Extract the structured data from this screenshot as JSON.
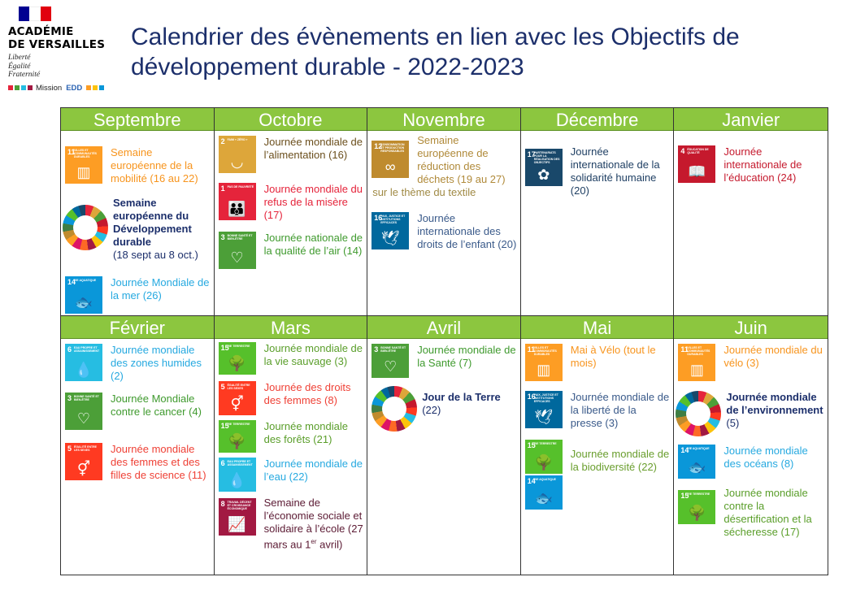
{
  "colors": {
    "month_header": "#8cc63f",
    "title": "#1c2f6b",
    "sdg": {
      "1": "#e5243b",
      "2": "#dda63a",
      "3": "#4c9f38",
      "4": "#c5192d",
      "5": "#ff3a21",
      "6": "#26bde2",
      "11": "#fd9d24",
      "12": "#bf8b2e",
      "14": "#0a97d9",
      "15": "#56c02b",
      "16": "#00689d",
      "17": "#19486a",
      "8": "#a21942"
    }
  },
  "header": {
    "logo": {
      "line1": "ACADÉMIE",
      "line2": "DE VERSAILLES",
      "motto": [
        "Liberté",
        "Égalité",
        "Fraternité"
      ],
      "mission_label": "Mission",
      "mission_acronym": "EDD"
    },
    "title_line1": "Calendrier des évènements en lien avec les Objectifs de",
    "title_line2": "développement durable - 2022-2023"
  },
  "months": {
    "sep": "Septembre",
    "oct": "Octobre",
    "nov": "Novembre",
    "dec": "Décembre",
    "jan": "Janvier",
    "feb": "Février",
    "mar": "Mars",
    "apr": "Avril",
    "may": "Mai",
    "jun": "Juin"
  },
  "icons": {
    "11": {
      "num": "11",
      "label": "Villes et communautés durables",
      "pic": "▥"
    },
    "14": {
      "num": "14",
      "label": "Vie aquatique",
      "pic": "🐟"
    },
    "2": {
      "num": "2",
      "label": "Faim « zéro »",
      "pic": "◡"
    },
    "1": {
      "num": "1",
      "label": "Pas de pauvreté",
      "pic": "👪"
    },
    "3": {
      "num": "3",
      "label": "Bonne santé et bien-être",
      "pic": "♡"
    },
    "12": {
      "num": "12",
      "label": "Consommation et production responsables",
      "pic": "∞"
    },
    "16": {
      "num": "16",
      "label": "Paix, justice et institutions efficaces",
      "pic": "🕊"
    },
    "17": {
      "num": "17",
      "label": "Partenariats pour la réalisation des objectifs",
      "pic": "✿"
    },
    "4": {
      "num": "4",
      "label": "Éducation de qualité",
      "pic": "📖"
    },
    "6": {
      "num": "6",
      "label": "Eau propre et assainissement",
      "pic": "💧"
    },
    "5": {
      "num": "5",
      "label": "Égalité entre les sexes",
      "pic": "⚥"
    },
    "15": {
      "num": "15",
      "label": "Vie terrestre",
      "pic": "🌳"
    },
    "8": {
      "num": "8",
      "label": "Travail décent et croissance économique",
      "pic": "📈"
    }
  },
  "events": {
    "sep_1": "Semaine européenne de la mobilité (16 au 22)",
    "sep_2_title": "Semaine européenne du Développement durable",
    "sep_2_date": "(18 sept au 8 oct.)",
    "sep_3": "Journée Mondiale de la mer (26)",
    "oct_1": "Journée mondiale de l’alimentation (16)",
    "oct_2": "Journée mondiale du refus de la misère (17)",
    "oct_3": "Journée nationale de la qualité de l’air (14)",
    "nov_1": "Semaine européenne de réduction des déchets (19 au 27)",
    "nov_1_theme": "sur le thème du textile",
    "nov_2": "Journée internationale des droits de l’enfant (20)",
    "dec_1": "Journée internationale de la solidarité humaine (20)",
    "jan_1": "Journée internationale de l’éducation (24)",
    "feb_1": "Journée mondiale des zones humides (2)",
    "feb_2": "Journée Mondiale contre le cancer (4)",
    "feb_3": "Journée mondiale des femmes et des filles de science (11)",
    "mar_1": "Journée mondiale de la vie sauvage (3)",
    "mar_2": "Journée des droits des femmes (8)",
    "mar_3": "Journée mondiale des forêts (21)",
    "mar_4": "Journée mondiale de l’eau (22)",
    "mar_5_a": "Semaine de l’économie sociale et solidaire à l’école (27 mars au 1",
    "mar_5_sup": "er",
    "mar_5_b": " avril)",
    "apr_1": "Journée mondiale de la Santé (7)",
    "apr_2_title": "Jour de la Terre",
    "apr_2_date": "(22)",
    "may_1": "Mai à Vélo (tout le mois)",
    "may_2": "Journée mondiale de la liberté de la presse (3)",
    "may_3": "Journée mondiale de la biodiversité (22)",
    "jun_1": "Journée mondiale du vélo (3)",
    "jun_2_title": "Journée mondiale de l’environnement",
    "jun_2_date": "(5)",
    "jun_3": "Journée mondiale des océans (8)",
    "jun_4": "Journée mondiale contre la désertification et la sécheresse (17)"
  }
}
